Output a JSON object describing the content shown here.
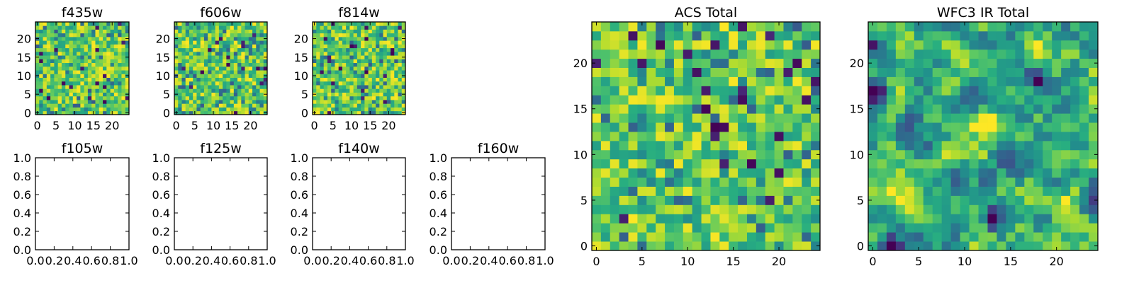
{
  "colormap": "viridis",
  "chart_data": [
    {
      "type": "heatmap",
      "title": "f435w",
      "grid_size": [
        25,
        25
      ],
      "xlim": [
        -0.5,
        24.5
      ],
      "ylim": [
        -0.5,
        24.5
      ],
      "xticks": [
        0,
        5,
        10,
        15,
        20
      ],
      "yticks": [
        0,
        5,
        10,
        15,
        20
      ],
      "xtick_labels": [
        "0",
        "5",
        "10",
        "15",
        "20"
      ],
      "ytick_labels": [
        "0",
        "5",
        "10",
        "15",
        "20"
      ],
      "value_range": [
        0,
        1
      ],
      "pattern": "noise",
      "note": "uniform pixel noise, mostly green-yellow with a few dark purple pixels"
    },
    {
      "type": "heatmap",
      "title": "f606w",
      "grid_size": [
        25,
        25
      ],
      "xlim": [
        -0.5,
        24.5
      ],
      "ylim": [
        -0.5,
        24.5
      ],
      "xticks": [
        0,
        5,
        10,
        15,
        20
      ],
      "yticks": [
        0,
        5,
        10,
        15,
        20
      ],
      "xtick_labels": [
        "0",
        "5",
        "10",
        "15",
        "20"
      ],
      "ytick_labels": [
        "0",
        "5",
        "10",
        "15",
        "20"
      ],
      "value_range": [
        0,
        1
      ],
      "pattern": "noise"
    },
    {
      "type": "heatmap",
      "title": "f814w",
      "grid_size": [
        25,
        25
      ],
      "xlim": [
        -0.5,
        24.5
      ],
      "ylim": [
        -0.5,
        24.5
      ],
      "xticks": [
        0,
        5,
        10,
        15,
        20
      ],
      "yticks": [
        0,
        5,
        10,
        15,
        20
      ],
      "xtick_labels": [
        "0",
        "5",
        "10",
        "15",
        "20"
      ],
      "ytick_labels": [
        "0",
        "5",
        "10",
        "15",
        "20"
      ],
      "value_range": [
        0,
        1
      ],
      "pattern": "noise"
    },
    {
      "type": "empty",
      "title": "f105w",
      "xlim": [
        0,
        1
      ],
      "ylim": [
        0,
        1
      ],
      "xtick_labels": [
        "0.0",
        "0.2",
        "0.4",
        "0.6",
        "0.8",
        "1.0"
      ],
      "ytick_labels": [
        "0.0",
        "0.2",
        "0.4",
        "0.6",
        "0.8",
        "1.0"
      ]
    },
    {
      "type": "empty",
      "title": "f125w",
      "xlim": [
        0,
        1
      ],
      "ylim": [
        0,
        1
      ],
      "xtick_labels": [
        "0.0",
        "0.2",
        "0.4",
        "0.6",
        "0.8",
        "1.0"
      ],
      "ytick_labels": [
        "0.0",
        "0.2",
        "0.4",
        "0.6",
        "0.8",
        "1.0"
      ]
    },
    {
      "type": "empty",
      "title": "f140w",
      "xlim": [
        0,
        1
      ],
      "ylim": [
        0,
        1
      ],
      "xtick_labels": [
        "0.0",
        "0.2",
        "0.4",
        "0.6",
        "0.8",
        "1.0"
      ],
      "ytick_labels": [
        "0.0",
        "0.2",
        "0.4",
        "0.6",
        "0.8",
        "1.0"
      ]
    },
    {
      "type": "empty",
      "title": "f160w",
      "xlim": [
        0,
        1
      ],
      "ylim": [
        0,
        1
      ],
      "xtick_labels": [
        "0.0",
        "0.2",
        "0.4",
        "0.6",
        "0.8",
        "1.0"
      ],
      "ytick_labels": [
        "0.0",
        "0.2",
        "0.4",
        "0.6",
        "0.8",
        "1.0"
      ]
    },
    {
      "type": "heatmap",
      "title": "ACS Total",
      "grid_size": [
        25,
        25
      ],
      "xlim": [
        -0.5,
        24.5
      ],
      "ylim": [
        -0.5,
        24.5
      ],
      "xticks": [
        0,
        5,
        10,
        15,
        20
      ],
      "yticks": [
        0,
        5,
        10,
        15,
        20
      ],
      "xtick_labels": [
        "0",
        "5",
        "10",
        "15",
        "20"
      ],
      "ytick_labels": [
        "0",
        "5",
        "10",
        "15",
        "20"
      ],
      "value_range": [
        0,
        1
      ],
      "pattern": "noise",
      "note": "mostly green-yellow noise with isolated dark pixels"
    },
    {
      "type": "heatmap",
      "title": "WFC3 IR Total",
      "grid_size": [
        25,
        25
      ],
      "xlim": [
        -0.5,
        24.5
      ],
      "ylim": [
        -0.5,
        24.5
      ],
      "xticks": [
        0,
        5,
        10,
        15,
        20
      ],
      "yticks": [
        0,
        5,
        10,
        15,
        20
      ],
      "xtick_labels": [
        "0",
        "5",
        "10",
        "15",
        "20"
      ],
      "ytick_labels": [
        "0",
        "5",
        "10",
        "15",
        "20"
      ],
      "value_range": [
        0,
        1
      ],
      "pattern": "smooth-noise",
      "bright_spots": [
        [
          12,
          13
        ],
        [
          21,
          4
        ],
        [
          3,
          7
        ]
      ],
      "dark_spots": [
        [
          0,
          22
        ],
        [
          0,
          17
        ],
        [
          18,
          18
        ],
        [
          2,
          0
        ],
        [
          13,
          3
        ]
      ]
    }
  ]
}
